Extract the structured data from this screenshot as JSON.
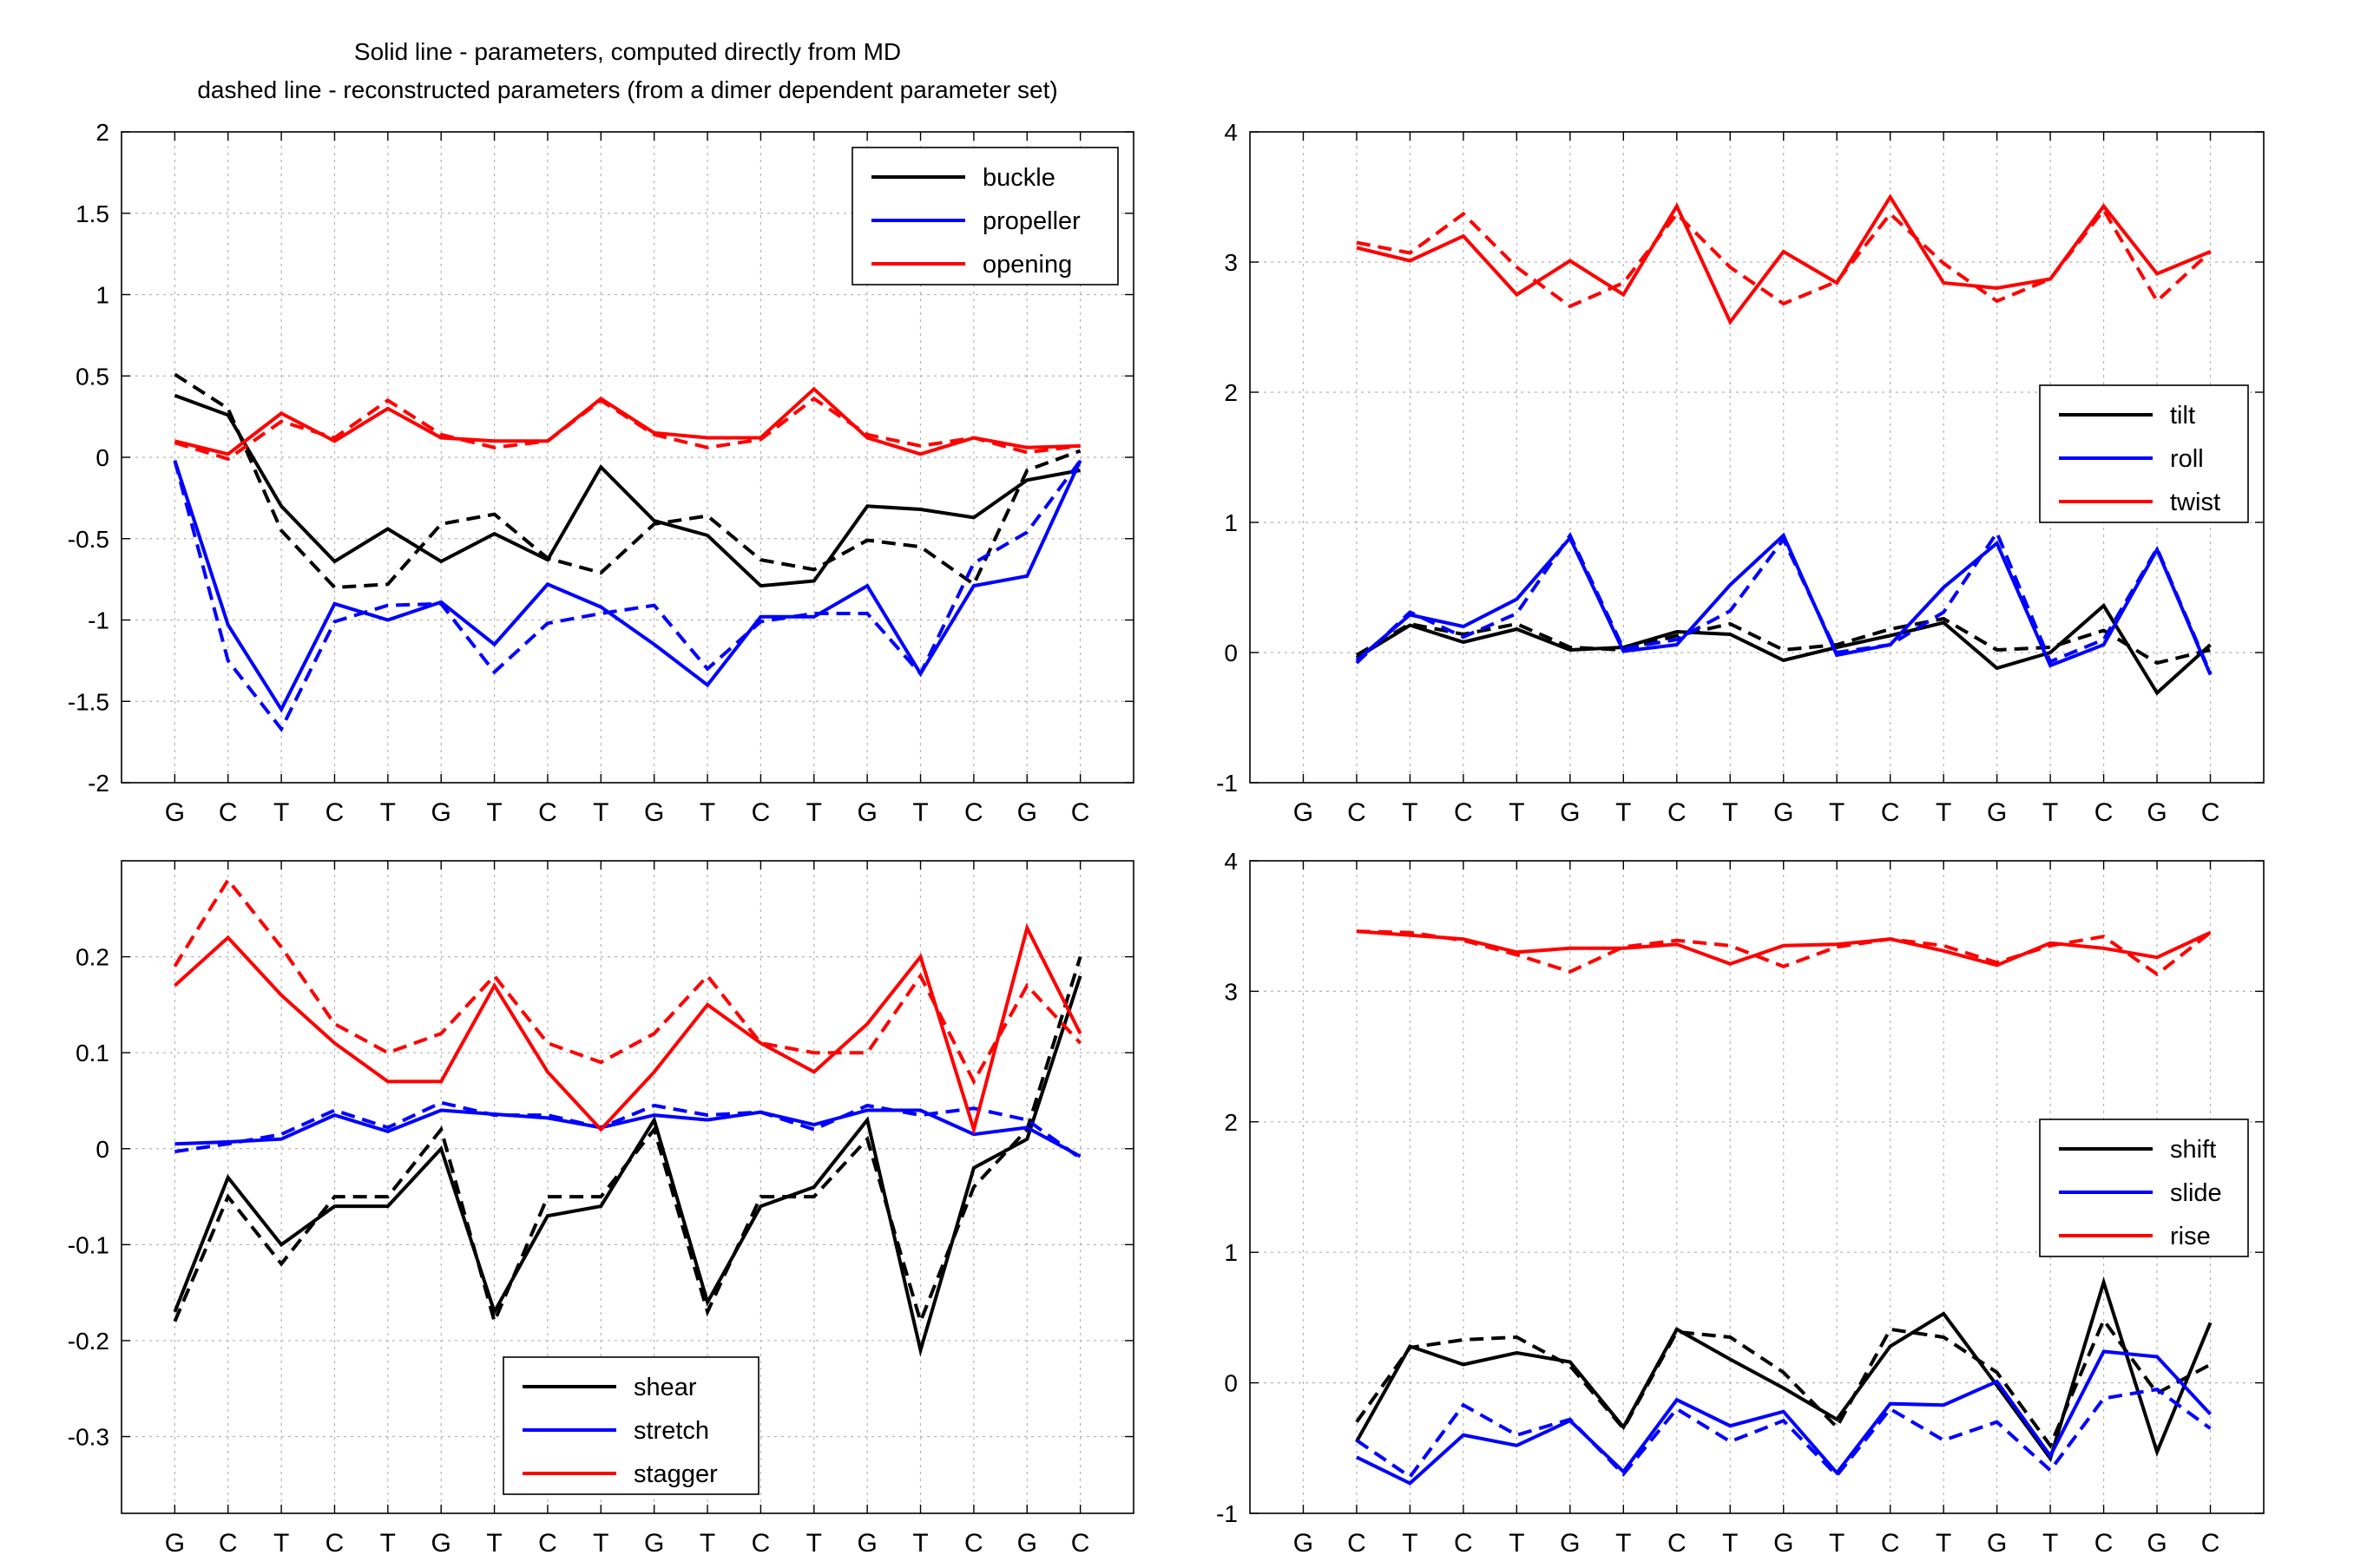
{
  "figure_title": [
    "Solid line - parameters, computed directly from MD",
    "dashed line - reconstructed parameters (from a dimer dependent parameter set)"
  ],
  "colors": {
    "black": "#000000",
    "blue": "#0000ff",
    "red": "#ff0000",
    "grid": "#b4b4b4"
  },
  "chart_data": [
    {
      "type": "line",
      "panel": "top-left",
      "categories": [
        "G",
        "C",
        "T",
        "C",
        "T",
        "G",
        "T",
        "C",
        "T",
        "G",
        "T",
        "C",
        "T",
        "G",
        "T",
        "C",
        "G",
        "C"
      ],
      "ylim": [
        -2,
        2
      ],
      "yticks": [
        -2,
        -1.5,
        -1,
        -0.5,
        0,
        0.5,
        1,
        1.5,
        2
      ],
      "ytick_labels": [
        "-2",
        "-1.5",
        "-1",
        "-0.5",
        "0",
        "0.5",
        "1",
        "1.5",
        "2"
      ],
      "grid": true,
      "legend_position": "top-right",
      "title": "",
      "xlabel": "",
      "ylabel": "",
      "series": [
        {
          "name": "buckle",
          "color": "#000000",
          "style": "solid",
          "values": [
            0.38,
            0.26,
            -0.3,
            -0.64,
            -0.44,
            -0.64,
            -0.47,
            -0.63,
            -0.06,
            -0.39,
            -0.48,
            -0.79,
            -0.76,
            -0.3,
            -0.32,
            -0.37,
            -0.14,
            -0.08
          ]
        },
        {
          "name": "buckle",
          "color": "#000000",
          "style": "dashed",
          "values": [
            0.51,
            0.3,
            -0.45,
            -0.8,
            -0.78,
            -0.41,
            -0.35,
            -0.62,
            -0.71,
            -0.41,
            -0.36,
            -0.63,
            -0.69,
            -0.51,
            -0.55,
            -0.78,
            -0.08,
            0.04
          ]
        },
        {
          "name": "propeller",
          "color": "#0000ff",
          "style": "solid",
          "values": [
            -0.02,
            -1.03,
            -1.55,
            -0.9,
            -1.0,
            -0.89,
            -1.15,
            -0.78,
            -0.92,
            -1.15,
            -1.4,
            -0.98,
            -0.98,
            -0.79,
            -1.33,
            -0.79,
            -0.73,
            -0.02
          ]
        },
        {
          "name": "propeller",
          "color": "#0000ff",
          "style": "dashed",
          "values": [
            -0.02,
            -1.25,
            -1.67,
            -1.01,
            -0.91,
            -0.9,
            -1.32,
            -1.02,
            -0.96,
            -0.91,
            -1.3,
            -1.01,
            -0.96,
            -0.96,
            -1.33,
            -0.65,
            -0.46,
            -0.02
          ]
        },
        {
          "name": "opening",
          "color": "#ff0000",
          "style": "solid",
          "values": [
            0.1,
            0.02,
            0.27,
            0.1,
            0.3,
            0.12,
            0.1,
            0.1,
            0.36,
            0.15,
            0.12,
            0.12,
            0.42,
            0.12,
            0.02,
            0.12,
            0.06,
            0.07
          ]
        },
        {
          "name": "opening",
          "color": "#ff0000",
          "style": "dashed",
          "values": [
            0.09,
            -0.01,
            0.22,
            0.12,
            0.35,
            0.14,
            0.06,
            0.1,
            0.35,
            0.14,
            0.06,
            0.11,
            0.36,
            0.14,
            0.07,
            0.12,
            0.03,
            0.07
          ]
        }
      ]
    },
    {
      "type": "line",
      "panel": "top-right",
      "categories": [
        "G",
        "C",
        "T",
        "C",
        "T",
        "G",
        "T",
        "C",
        "T",
        "G",
        "T",
        "C",
        "T",
        "G",
        "T",
        "C",
        "G",
        "C"
      ],
      "ylim": [
        -1,
        4
      ],
      "yticks": [
        -1,
        0,
        1,
        2,
        3,
        4
      ],
      "ytick_labels": [
        "-1",
        "0",
        "1",
        "2",
        "3",
        "4"
      ],
      "grid": true,
      "legend_position": "center-right",
      "title": "",
      "xlabel": "",
      "ylabel": "",
      "series": [
        {
          "name": "tilt",
          "color": "#000000",
          "style": "solid",
          "values": [
            null,
            -0.04,
            0.21,
            0.08,
            0.18,
            0.02,
            0.04,
            0.16,
            0.14,
            -0.06,
            0.04,
            0.13,
            0.23,
            -0.12,
            0.0,
            0.36,
            -0.31,
            0.06
          ]
        },
        {
          "name": "tilt",
          "color": "#000000",
          "style": "dashed",
          "values": [
            null,
            -0.02,
            0.22,
            0.14,
            0.22,
            0.04,
            0.02,
            0.13,
            0.22,
            0.02,
            0.06,
            0.18,
            0.26,
            0.02,
            0.04,
            0.17,
            -0.08,
            0.02
          ]
        },
        {
          "name": "roll",
          "color": "#0000ff",
          "style": "solid",
          "values": [
            null,
            -0.06,
            0.29,
            0.2,
            0.41,
            0.88,
            0.01,
            0.06,
            0.52,
            0.9,
            -0.02,
            0.06,
            0.5,
            0.84,
            -0.1,
            0.06,
            0.79,
            -0.17
          ]
        },
        {
          "name": "roll",
          "color": "#0000ff",
          "style": "dashed",
          "values": [
            null,
            -0.08,
            0.31,
            0.12,
            0.3,
            0.9,
            0.03,
            0.1,
            0.32,
            0.87,
            0.0,
            0.06,
            0.31,
            0.92,
            -0.07,
            0.1,
            0.8,
            -0.16
          ]
        },
        {
          "name": "twist",
          "color": "#ff0000",
          "style": "solid",
          "values": [
            null,
            3.11,
            3.01,
            3.2,
            2.75,
            3.01,
            2.75,
            3.43,
            2.54,
            3.08,
            2.84,
            3.5,
            2.84,
            2.8,
            2.87,
            3.43,
            2.91,
            3.08
          ]
        },
        {
          "name": "twist",
          "color": "#ff0000",
          "style": "dashed",
          "values": [
            null,
            3.15,
            3.07,
            3.37,
            2.96,
            2.66,
            2.84,
            3.37,
            2.96,
            2.68,
            2.85,
            3.37,
            2.99,
            2.7,
            2.87,
            3.4,
            2.7,
            3.08
          ]
        }
      ]
    },
    {
      "type": "line",
      "panel": "bottom-left",
      "categories": [
        "G",
        "C",
        "T",
        "C",
        "T",
        "G",
        "T",
        "C",
        "T",
        "G",
        "T",
        "C",
        "T",
        "G",
        "T",
        "C",
        "G",
        "C"
      ],
      "ylim": [
        -0.38,
        0.3
      ],
      "yticks": [
        -0.3,
        -0.2,
        -0.1,
        0,
        0.1,
        0.2
      ],
      "ytick_labels": [
        "-0.3",
        "-0.2",
        "-0.1",
        "0",
        "0.1",
        "0.2"
      ],
      "grid": true,
      "legend_position": "bottom-center",
      "title": "",
      "xlabel": "",
      "ylabel": "",
      "series": [
        {
          "name": "shear",
          "color": "#000000",
          "style": "solid",
          "values": [
            -0.17,
            -0.03,
            -0.1,
            -0.06,
            -0.06,
            0.0,
            -0.17,
            -0.07,
            -0.06,
            0.03,
            -0.16,
            -0.06,
            -0.04,
            0.03,
            -0.21,
            -0.02,
            0.01,
            0.18
          ]
        },
        {
          "name": "shear",
          "color": "#000000",
          "style": "dashed",
          "values": [
            -0.18,
            -0.05,
            -0.12,
            -0.05,
            -0.05,
            0.02,
            -0.18,
            -0.05,
            -0.05,
            0.02,
            -0.17,
            -0.05,
            -0.05,
            0.01,
            -0.18,
            -0.04,
            0.02,
            0.2
          ]
        },
        {
          "name": "stretch",
          "color": "#0000ff",
          "style": "solid",
          "values": [
            0.005,
            0.007,
            0.01,
            0.035,
            0.018,
            0.04,
            0.036,
            0.032,
            0.022,
            0.035,
            0.03,
            0.038,
            0.025,
            0.04,
            0.04,
            0.015,
            0.022,
            -0.008
          ]
        },
        {
          "name": "stretch",
          "color": "#0000ff",
          "style": "dashed",
          "values": [
            -0.003,
            0.005,
            0.015,
            0.04,
            0.022,
            0.048,
            0.035,
            0.035,
            0.022,
            0.045,
            0.035,
            0.038,
            0.02,
            0.045,
            0.035,
            0.042,
            0.03,
            -0.01
          ]
        },
        {
          "name": "stagger",
          "color": "#ff0000",
          "style": "solid",
          "values": [
            0.17,
            0.22,
            0.16,
            0.11,
            0.07,
            0.07,
            0.17,
            0.08,
            0.02,
            0.08,
            0.15,
            0.11,
            0.08,
            0.13,
            0.2,
            0.02,
            0.23,
            0.12
          ]
        },
        {
          "name": "stagger",
          "color": "#ff0000",
          "style": "dashed",
          "values": [
            0.19,
            0.28,
            0.21,
            0.13,
            0.1,
            0.12,
            0.18,
            0.11,
            0.09,
            0.12,
            0.18,
            0.11,
            0.1,
            0.1,
            0.18,
            0.07,
            0.17,
            0.11
          ]
        }
      ]
    },
    {
      "type": "line",
      "panel": "bottom-right",
      "categories": [
        "G",
        "C",
        "T",
        "C",
        "T",
        "G",
        "T",
        "C",
        "T",
        "G",
        "T",
        "C",
        "T",
        "G",
        "T",
        "C",
        "G",
        "C"
      ],
      "ylim": [
        -1,
        4
      ],
      "yticks": [
        -1,
        0,
        1,
        2,
        3,
        4
      ],
      "ytick_labels": [
        "-1",
        "0",
        "1",
        "2",
        "3",
        "4"
      ],
      "grid": true,
      "legend_position": "center-right",
      "title": "",
      "xlabel": "",
      "ylabel": "",
      "series": [
        {
          "name": "shift",
          "color": "#000000",
          "style": "solid",
          "values": [
            null,
            -0.45,
            0.28,
            0.14,
            0.23,
            0.16,
            -0.34,
            0.41,
            0.18,
            -0.04,
            -0.28,
            0.28,
            0.53,
            -0.02,
            -0.58,
            0.77,
            -0.53,
            0.46
          ]
        },
        {
          "name": "shift",
          "color": "#000000",
          "style": "dashed",
          "values": [
            null,
            -0.3,
            0.27,
            0.33,
            0.35,
            0.13,
            -0.35,
            0.39,
            0.35,
            0.08,
            -0.34,
            0.41,
            0.35,
            0.08,
            -0.48,
            0.48,
            -0.08,
            0.14
          ]
        },
        {
          "name": "slide",
          "color": "#0000ff",
          "style": "solid",
          "values": [
            null,
            -0.57,
            -0.77,
            -0.4,
            -0.48,
            -0.29,
            -0.68,
            -0.13,
            -0.33,
            -0.22,
            -0.69,
            -0.16,
            -0.17,
            0.01,
            -0.56,
            0.24,
            0.2,
            -0.24
          ]
        },
        {
          "name": "slide",
          "color": "#0000ff",
          "style": "dashed",
          "values": [
            null,
            -0.44,
            -0.72,
            -0.17,
            -0.4,
            -0.28,
            -0.7,
            -0.2,
            -0.45,
            -0.29,
            -0.71,
            -0.2,
            -0.44,
            -0.3,
            -0.67,
            -0.12,
            -0.05,
            -0.35
          ]
        },
        {
          "name": "rise",
          "color": "#ff0000",
          "style": "solid",
          "values": [
            null,
            3.46,
            3.43,
            3.4,
            3.3,
            3.33,
            3.33,
            3.36,
            3.21,
            3.35,
            3.36,
            3.4,
            3.31,
            3.2,
            3.37,
            3.33,
            3.26,
            3.45
          ]
        },
        {
          "name": "rise",
          "color": "#ff0000",
          "style": "dashed",
          "values": [
            null,
            3.46,
            3.45,
            3.39,
            3.28,
            3.15,
            3.34,
            3.39,
            3.35,
            3.19,
            3.34,
            3.4,
            3.35,
            3.22,
            3.35,
            3.42,
            3.13,
            3.45
          ]
        }
      ]
    }
  ]
}
